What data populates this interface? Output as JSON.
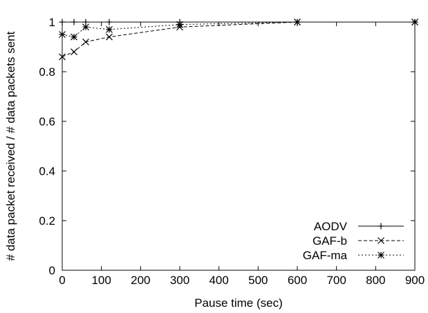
{
  "chart_data": {
    "type": "line",
    "title": "",
    "xlabel": "Pause time (sec)",
    "ylabel": "# data packet received / # data packets sent",
    "xlim": [
      0,
      900
    ],
    "ylim": [
      0,
      1
    ],
    "xticks": [
      0,
      100,
      200,
      300,
      400,
      500,
      600,
      700,
      800,
      900
    ],
    "yticks": [
      0,
      0.2,
      0.4,
      0.6,
      0.8,
      1
    ],
    "ytick_labels": [
      "0",
      "0.2",
      "0.4",
      "0.6",
      "0.8",
      "1"
    ],
    "grid": false,
    "legend_position": "bottom-right",
    "series": [
      {
        "name": "AODV",
        "marker": "plus",
        "dash": "solid",
        "x": [
          0,
          30,
          60,
          120,
          300,
          600,
          900
        ],
        "y": [
          1,
          1,
          1,
          1,
          1,
          1,
          1
        ]
      },
      {
        "name": "GAF-b",
        "marker": "cross",
        "dash": "dashed",
        "x": [
          0,
          30,
          60,
          120,
          300,
          600,
          900
        ],
        "y": [
          0.86,
          0.88,
          0.92,
          0.94,
          0.98,
          1,
          1
        ]
      },
      {
        "name": "GAF-ma",
        "marker": "star",
        "dash": "dotted",
        "x": [
          0,
          30,
          60,
          120,
          300,
          600,
          900
        ],
        "y": [
          0.95,
          0.94,
          0.98,
          0.97,
          0.99,
          1,
          1
        ]
      }
    ]
  }
}
